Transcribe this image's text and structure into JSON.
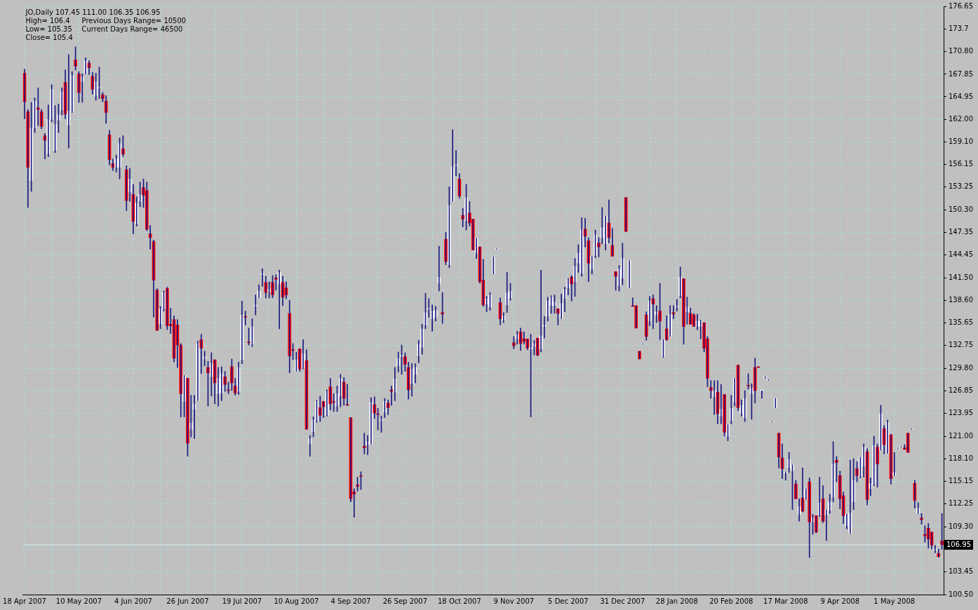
{
  "chart_data": {
    "type": "candlestick",
    "title": "JO,Daily 107.45 111.00 106.35 106.95",
    "annotations": [
      "High= 106.4",
      "Previous Days Range= 10500",
      "Low= 105.35",
      "Current Days Range= 46500",
      "Close= 105.4"
    ],
    "categories": [
      "18 Apr 2007",
      null,
      null,
      null,
      null,
      null,
      null,
      null,
      null,
      null,
      null,
      null,
      null,
      null,
      null,
      null,
      "10 May 2007",
      null,
      null,
      null,
      null,
      null,
      null,
      null,
      null,
      null,
      null,
      null,
      null,
      null,
      null,
      null,
      "4 Jun 2007",
      null,
      null,
      null,
      null,
      null,
      null,
      null,
      null,
      null,
      null,
      null,
      null,
      null,
      null,
      null,
      "26 Jun 2007",
      null,
      null,
      null,
      null,
      null,
      null,
      null,
      null,
      null,
      null,
      null,
      null,
      null,
      null,
      null,
      "19 Jul 2007",
      null,
      null,
      null,
      null,
      null,
      null,
      null,
      null,
      null,
      null,
      null,
      null,
      null,
      null,
      null,
      "10 Aug 2007",
      null,
      null,
      null,
      null,
      null,
      null,
      null,
      null,
      null,
      null,
      null,
      null,
      null,
      null,
      null,
      "4 Sep 2007",
      null,
      null,
      null,
      null,
      null,
      null,
      null,
      null,
      null,
      null,
      null,
      null,
      null,
      null,
      null,
      "26 Sep 2007",
      null,
      null,
      null,
      null,
      null,
      null,
      null,
      null,
      null,
      null,
      null,
      null,
      null,
      null,
      null,
      "18 Oct 2007",
      null,
      null,
      null,
      null,
      null,
      null,
      null,
      null,
      null,
      null,
      null,
      null,
      null,
      null,
      null,
      "9 Nov 2007",
      null,
      null,
      null,
      null,
      null,
      null,
      null,
      null,
      null,
      null,
      null,
      null,
      null,
      null,
      null,
      "5 Dec 2007",
      null,
      null,
      null,
      null,
      null,
      null,
      null,
      null,
      null,
      null,
      null,
      null,
      null,
      null,
      null,
      "31 Dec 2007",
      null,
      null,
      null,
      null,
      null,
      null,
      null,
      null,
      null,
      null,
      null,
      null,
      null,
      null,
      null,
      "28 Jan 2008",
      null,
      null,
      null,
      null,
      null,
      null,
      null,
      null,
      null,
      null,
      null,
      null,
      null,
      null,
      null,
      "20 Feb 2008",
      null,
      null,
      null,
      null,
      null,
      null,
      null,
      null,
      null,
      null,
      null,
      null,
      null,
      null,
      null,
      "17 Mar 2008",
      null,
      null,
      null,
      null,
      null,
      null,
      null,
      null,
      null,
      null,
      null,
      null,
      null,
      null,
      null,
      "9 Apr 2008",
      null,
      null,
      null,
      null,
      null,
      null,
      null,
      null,
      null,
      null,
      null,
      null,
      null,
      null,
      null,
      "1 May 2008",
      null,
      null,
      null,
      null,
      null,
      null,
      null,
      null,
      null,
      null,
      null,
      null,
      null,
      null
    ],
    "color": "#1a1a80",
    "ohlc": [
      [
        168.0,
        168.5,
        162.1,
        164.3
      ],
      [
        163.0,
        163.3,
        150.6,
        155.8
      ],
      [
        154.1,
        164.2,
        152.7,
        160.9
      ],
      [
        160.9,
        164.8,
        160.3,
        164.4
      ],
      [
        163.5,
        166.1,
        161.2,
        163.3
      ],
      [
        163.0,
        163.3,
        160.8,
        161.1
      ],
      [
        159.9,
        160.2,
        156.9,
        159.3
      ],
      [
        157.6,
        163.9,
        157.2,
        162.0
      ],
      [
        162.0,
        166.5,
        161.7,
        165.9
      ],
      [
        158.0,
        163.8,
        157.7,
        161.4
      ],
      [
        161.9,
        164.0,
        160.3,
        162.6
      ],
      [
        163.2,
        166.1,
        162.6,
        165.6
      ],
      [
        166.8,
        168.4,
        162.1,
        162.7
      ],
      [
        161.3,
        170.4,
        158.3,
        163.1
      ],
      [
        163.0,
        168.2,
        162.9,
        167.7
      ],
      [
        169.7,
        171.4,
        168.4,
        168.9
      ],
      [
        167.9,
        168.2,
        164.2,
        165.5
      ],
      [
        166.9,
        167.9,
        164.2,
        167.5
      ],
      [
        168.0,
        170.0,
        167.9,
        169.6
      ],
      [
        169.3,
        169.6,
        167.8,
        168.7
      ],
      [
        167.6,
        168.1,
        165.3,
        165.9
      ],
      [
        165.1,
        168.0,
        164.5,
        166.9
      ],
      [
        166.1,
        168.8,
        164.7,
        166.2
      ],
      [
        165.2,
        165.5,
        164.3,
        164.7
      ],
      [
        164.4,
        165.1,
        161.5,
        162.9
      ],
      [
        160.0,
        160.6,
        156.1,
        156.8
      ],
      [
        156.3,
        156.9,
        155.4,
        155.8
      ],
      [
        155.8,
        157.4,
        155.2,
        156.9
      ],
      [
        155.8,
        159.6,
        154.3,
        158.9
      ],
      [
        158.2,
        159.9,
        157.2,
        157.5
      ],
      [
        155.5,
        156.0,
        150.2,
        151.5
      ],
      [
        152.6,
        155.7,
        151.4,
        154.3
      ],
      [
        152.3,
        153.6,
        147.2,
        148.8
      ],
      [
        148.5,
        152.0,
        148.2,
        151.2
      ],
      [
        151.4,
        153.9,
        150.7,
        152.3
      ],
      [
        153.2,
        154.3,
        150.6,
        152.2
      ],
      [
        152.8,
        153.9,
        147.6,
        147.8
      ],
      [
        147.2,
        148.3,
        145.2,
        146.7
      ],
      [
        146.2,
        146.4,
        136.4,
        141.2
      ],
      [
        139.9,
        140.1,
        134.7,
        134.7
      ],
      [
        135.5,
        137.8,
        134.9,
        137.5
      ],
      [
        137.5,
        139.8,
        137.2,
        139.6
      ],
      [
        140.1,
        140.3,
        134.8,
        135.3
      ],
      [
        135.5,
        137.6,
        134.3,
        135.3
      ],
      [
        136.1,
        136.6,
        130.6,
        131.1
      ],
      [
        135.4,
        136.1,
        129.9,
        132.8
      ],
      [
        132.8,
        133.0,
        123.5,
        126.5
      ],
      [
        125.5,
        128.9,
        123.5,
        128.9
      ],
      [
        128.5,
        128.5,
        118.4,
        120.1
      ],
      [
        121.9,
        126.3,
        120.9,
        122.7
      ],
      [
        124.5,
        126.3,
        120.7,
        125.2
      ],
      [
        125.6,
        133.3,
        125.6,
        133.0
      ],
      [
        133.5,
        134.2,
        129.1,
        132.4
      ],
      [
        131.0,
        132.0,
        130.1,
        131.3
      ],
      [
        129.9,
        130.7,
        124.9,
        129.2
      ],
      [
        128.7,
        131.8,
        126.2,
        130.4
      ],
      [
        130.9,
        130.9,
        125.2,
        127.9
      ],
      [
        126.5,
        129.9,
        124.9,
        128.5
      ],
      [
        126.6,
        130.0,
        125.6,
        129.1
      ],
      [
        128.7,
        129.4,
        126.8,
        127.7
      ],
      [
        127.0,
        128.0,
        126.5,
        126.9
      ],
      [
        130.0,
        131.0,
        126.9,
        127.9
      ],
      [
        127.5,
        128.5,
        126.3,
        126.6
      ],
      [
        126.8,
        130.6,
        126.4,
        129.9
      ],
      [
        130.9,
        138.5,
        130.4,
        136.7
      ],
      [
        136.5,
        137.2,
        135.4,
        136.4
      ],
      [
        133.2,
        135.0,
        132.8,
        133.1
      ],
      [
        132.9,
        136.2,
        132.6,
        135.2
      ],
      [
        137.8,
        139.3,
        136.7,
        138.0
      ],
      [
        138.9,
        140.6,
        138.9,
        139.8
      ],
      [
        141.9,
        142.7,
        140.4,
        142.1
      ],
      [
        140.9,
        141.7,
        138.9,
        139.6
      ],
      [
        139.7,
        141.0,
        138.9,
        140.0
      ],
      [
        140.9,
        141.8,
        138.9,
        139.3
      ],
      [
        141.5,
        141.9,
        139.9,
        141.3
      ],
      [
        140.7,
        142.5,
        134.9,
        142.2
      ],
      [
        140.9,
        141.7,
        137.9,
        139.0
      ],
      [
        140.2,
        141.0,
        138.8,
        139.3
      ],
      [
        136.9,
        138.6,
        129.2,
        131.4
      ],
      [
        132.2,
        133.0,
        130.9,
        132.1
      ],
      [
        129.4,
        131.9,
        129.4,
        130.9
      ],
      [
        132.3,
        132.3,
        129.4,
        129.7
      ],
      [
        129.8,
        133.5,
        129.7,
        131.7
      ],
      [
        130.8,
        132.2,
        121.9,
        121.9
      ],
      [
        120.0,
        121.1,
        118.4,
        120.7
      ],
      [
        121.6,
        123.5,
        120.9,
        123.1
      ],
      [
        123.0,
        125.6,
        122.8,
        125.5
      ],
      [
        124.7,
        126.2,
        122.9,
        123.7
      ],
      [
        125.5,
        125.5,
        123.4,
        124.8
      ],
      [
        123.7,
        127.0,
        123.6,
        126.8
      ],
      [
        127.4,
        128.5,
        124.4,
        125.2
      ],
      [
        125.5,
        126.5,
        124.2,
        125.4
      ],
      [
        124.9,
        127.5,
        124.2,
        126.5
      ],
      [
        126.2,
        129.0,
        124.8,
        128.5
      ],
      [
        128.0,
        128.6,
        125.0,
        125.9
      ],
      [
        125.1,
        127.7,
        125.0,
        125.0
      ],
      [
        123.4,
        123.4,
        112.5,
        112.9
      ],
      [
        113.8,
        114.2,
        110.5,
        113.5
      ],
      [
        114.7,
        115.7,
        113.9,
        114.5
      ],
      [
        115.9,
        116.4,
        114.1,
        115.8
      ],
      [
        119.7,
        121.4,
        118.7,
        119.5
      ],
      [
        119.9,
        121.1,
        118.6,
        120.3
      ],
      [
        120.0,
        126.0,
        120.0,
        125.4
      ],
      [
        125.1,
        126.1,
        123.3,
        124.0
      ],
      [
        123.9,
        124.6,
        121.8,
        123.8
      ],
      [
        123.0,
        123.6,
        121.5,
        123.2
      ],
      [
        124.1,
        125.9,
        123.4,
        125.5
      ],
      [
        125.3,
        125.7,
        123.8,
        124.7
      ],
      [
        127.0,
        127.5,
        125.0,
        126.8
      ],
      [
        126.7,
        129.9,
        125.6,
        128.4
      ],
      [
        130.1,
        131.9,
        129.3,
        131.1
      ],
      [
        131.3,
        132.8,
        129.0,
        131.5
      ],
      [
        131.3,
        131.8,
        129.4,
        130.3
      ],
      [
        129.9,
        130.6,
        125.8,
        127.0
      ],
      [
        127.8,
        130.4,
        126.2,
        129.7
      ],
      [
        129.0,
        130.4,
        127.9,
        129.9
      ],
      [
        131.4,
        133.4,
        130.5,
        132.9
      ],
      [
        132.5,
        135.5,
        131.6,
        134.9
      ],
      [
        135.4,
        139.5,
        134.9,
        137.0
      ],
      [
        137.4,
        138.8,
        136.4,
        137.6
      ],
      [
        136.2,
        138.0,
        134.6,
        137.2
      ],
      [
        136.4,
        137.8,
        135.9,
        137.3
      ],
      [
        140.8,
        145.6,
        139.8,
        141.6
      ],
      [
        137.0,
        139.6,
        135.6,
        136.8
      ],
      [
        146.5,
        147.4,
        143.2,
        143.6
      ],
      [
        143.2,
        153.3,
        142.8,
        150.9
      ],
      [
        151.4,
        160.7,
        151.4,
        155.9
      ],
      [
        156.0,
        158.0,
        154.7,
        156.2
      ],
      [
        154.3,
        155.0,
        151.8,
        152.1
      ],
      [
        149.6,
        150.5,
        148.1,
        149.1
      ],
      [
        148.9,
        153.6,
        147.7,
        151.9
      ],
      [
        149.9,
        151.4,
        148.2,
        148.6
      ],
      [
        149.1,
        149.1,
        145.1,
        145.1
      ],
      [
        144.7,
        146.6,
        144.0,
        146.6
      ],
      [
        145.5,
        145.5,
        140.8,
        141.0
      ],
      [
        141.2,
        143.9,
        137.8,
        138.0
      ],
      [
        138.1,
        139.1,
        137.1,
        138.8
      ],
      [
        137.7,
        139.6,
        137.3,
        139.3
      ],
      [
        142.0,
        144.2,
        142.0,
        144.2
      ],
      [
        145.2,
        145.2,
        145.2,
        145.2
      ],
      [
        138.3,
        138.9,
        135.4,
        136.2
      ],
      [
        136.0,
        137.0,
        135.7,
        136.6
      ],
      [
        138.0,
        142.2,
        137.0,
        139.6
      ],
      [
        138.9,
        140.8,
        138.6,
        139.8
      ],
      [
        133.1,
        133.9,
        132.3,
        132.7
      ],
      [
        133.6,
        134.6,
        132.9,
        134.2
      ],
      [
        134.5,
        135.0,
        132.1,
        133.0
      ],
      [
        133.6,
        134.5,
        132.9,
        133.3
      ],
      [
        133.6,
        133.6,
        132.2,
        132.4
      ],
      [
        132.3,
        134.2,
        123.5,
        132.5
      ],
      [
        132.6,
        133.4,
        131.5,
        133.0
      ],
      [
        133.7,
        133.7,
        131.4,
        131.5
      ],
      [
        132.3,
        142.5,
        131.9,
        134.0
      ],
      [
        135.2,
        136.5,
        133.7,
        135.4
      ],
      [
        136.5,
        139.0,
        135.9,
        138.5
      ],
      [
        137.9,
        139.2,
        136.9,
        139.0
      ],
      [
        137.9,
        139.3,
        136.9,
        138.4
      ],
      [
        137.5,
        137.5,
        135.4,
        136.9
      ],
      [
        136.2,
        139.4,
        136.2,
        138.2
      ],
      [
        138.8,
        140.3,
        137.1,
        140.0
      ],
      [
        140.2,
        141.4,
        139.3,
        141.3
      ],
      [
        141.6,
        141.8,
        138.5,
        140.7
      ],
      [
        141.0,
        144.0,
        139.1,
        143.0
      ],
      [
        143.4,
        145.8,
        142.2,
        144.7
      ],
      [
        142.1,
        149.3,
        141.7,
        147.8
      ],
      [
        147.8,
        149.2,
        145.5,
        146.9
      ],
      [
        146.3,
        146.7,
        141.0,
        143.4
      ],
      [
        142.6,
        144.3,
        142.0,
        144.3
      ],
      [
        144.4,
        147.7,
        144.1,
        147.1
      ],
      [
        146.0,
        146.7,
        144.2,
        145.5
      ],
      [
        146.7,
        150.6,
        145.9,
        148.0
      ],
      [
        145.9,
        149.5,
        145.1,
        149.5
      ],
      [
        148.6,
        151.6,
        146.0,
        146.7
      ],
      [
        145.7,
        147.9,
        144.3,
        144.3
      ],
      [
        142.3,
        142.3,
        139.9,
        141.7
      ],
      [
        140.5,
        143.1,
        139.8,
        142.7
      ],
      [
        141.5,
        146.0,
        140.6,
        144.0
      ],
      [
        151.9,
        151.9,
        147.5,
        147.5
      ],
      [
        140.2,
        143.7,
        140.2,
        143.7
      ],
      [
        137.9,
        138.9,
        137.8,
        137.8
      ],
      [
        137.9,
        137.9,
        135.0,
        135.0
      ],
      [
        132.0,
        132.0,
        131.0,
        131.0
      ],
      [
        132.9,
        132.9,
        132.9,
        132.9
      ],
      [
        136.7,
        137.1,
        133.4,
        133.9
      ],
      [
        135.9,
        139.1,
        135.3,
        138.5
      ],
      [
        138.8,
        139.3,
        134.9,
        138.1
      ],
      [
        136.7,
        137.9,
        135.7,
        137.1
      ],
      [
        137.2,
        140.8,
        133.5,
        135.9
      ],
      [
        131.3,
        133.5,
        131.2,
        133.5
      ],
      [
        134.9,
        136.6,
        133.4,
        133.5
      ],
      [
        133.9,
        137.9,
        133.9,
        136.8
      ],
      [
        137.0,
        137.9,
        136.2,
        136.8
      ],
      [
        137.7,
        138.7,
        137.2,
        137.9
      ],
      [
        139.2,
        142.9,
        138.9,
        141.6
      ],
      [
        141.4,
        141.4,
        132.9,
        135.2
      ],
      [
        137.1,
        139.0,
        135.5,
        137.7
      ],
      [
        136.9,
        137.6,
        135.5,
        135.5
      ],
      [
        136.7,
        136.9,
        135.2,
        135.2
      ],
      [
        135.2,
        136.8,
        134.8,
        135.9
      ],
      [
        135.2,
        136.0,
        133.6,
        135.9
      ],
      [
        135.7,
        135.7,
        131.9,
        132.4
      ],
      [
        133.6,
        133.9,
        127.4,
        128.5
      ],
      [
        127.3,
        128.2,
        125.9,
        126.9
      ],
      [
        126.1,
        128.2,
        123.8,
        126.9
      ],
      [
        126.7,
        128.2,
        122.6,
        123.9
      ],
      [
        123.6,
        127.7,
        122.6,
        124.5
      ],
      [
        126.4,
        126.4,
        121.0,
        121.5
      ],
      [
        121.0,
        122.5,
        120.4,
        122.5
      ],
      [
        123.0,
        126.3,
        122.6,
        124.6
      ],
      [
        125.4,
        128.5,
        124.9,
        128.5
      ],
      [
        130.2,
        130.2,
        124.3,
        124.7
      ],
      [
        123.9,
        125.7,
        123.6,
        125.0
      ],
      [
        123.4,
        126.9,
        122.9,
        125.9
      ],
      [
        127.6,
        129.1,
        127.1,
        127.5
      ],
      [
        126.5,
        127.8,
        123.2,
        127.2
      ],
      [
        129.9,
        131.1,
        125.3,
        126.9
      ],
      [
        130.0,
        130.0,
        129.9,
        129.9
      ],
      [
        126.9,
        126.9,
        125.9,
        126.9
      ],
      [
        128.5,
        128.7,
        128.5,
        128.7
      ],
      [
        128.2,
        128.2,
        128.2,
        128.2
      ],
      [
        122.8,
        122.8,
        122.8,
        122.8
      ],
      [
        124.7,
        125.9,
        124.7,
        125.9
      ],
      [
        121.4,
        121.4,
        116.9,
        118.3
      ],
      [
        118.2,
        120.0,
        115.5,
        116.8
      ],
      [
        116.2,
        116.4,
        115.3,
        116.4
      ],
      [
        116.9,
        118.9,
        116.3,
        118.0
      ],
      [
        116.5,
        117.3,
        111.5,
        117.3
      ],
      [
        114.8,
        115.3,
        112.9,
        112.9
      ],
      [
        110.9,
        112.9,
        110.0,
        111.9
      ],
      [
        113.0,
        116.9,
        111.2,
        111.3
      ],
      [
        112.8,
        114.2,
        112.8,
        114.2
      ],
      [
        115.1,
        115.6,
        105.3,
        109.9
      ],
      [
        109.9,
        110.9,
        108.3,
        110.4
      ],
      [
        110.7,
        110.7,
        108.5,
        108.6
      ],
      [
        110.8,
        115.7,
        110.6,
        112.4
      ],
      [
        112.9,
        114.6,
        109.8,
        110.0
      ],
      [
        110.8,
        111.5,
        107.5,
        111.5
      ],
      [
        111.4,
        113.5,
        111.0,
        112.5
      ],
      [
        113.1,
        120.3,
        112.5,
        117.4
      ],
      [
        117.9,
        118.4,
        115.1,
        117.6
      ],
      [
        115.9,
        116.5,
        111.6,
        112.9
      ],
      [
        113.3,
        113.8,
        109.7,
        110.7
      ],
      [
        109.4,
        110.9,
        109.0,
        110.9
      ],
      [
        108.4,
        117.9,
        108.4,
        111.1
      ],
      [
        112.5,
        118.1,
        111.5,
        115.3
      ],
      [
        116.8,
        117.7,
        115.1,
        115.9
      ],
      [
        115.8,
        118.3,
        115.6,
        118.3
      ],
      [
        117.1,
        120.0,
        115.7,
        119.6
      ],
      [
        119.0,
        119.4,
        112.1,
        112.8
      ],
      [
        114.2,
        115.6,
        113.3,
        114.9
      ],
      [
        114.8,
        121.0,
        114.6,
        119.8
      ],
      [
        119.6,
        120.0,
        114.4,
        117.4
      ],
      [
        119.2,
        125.0,
        119.2,
        123.9
      ],
      [
        122.0,
        122.4,
        118.7,
        119.9
      ],
      [
        118.8,
        123.1,
        118.8,
        122.8
      ],
      [
        121.2,
        121.2,
        114.8,
        115.5
      ],
      [
        115.9,
        118.9,
        115.9,
        116.3
      ],
      [
        119.4,
        119.4,
        119.4,
        119.4
      ],
      [
        119.6,
        119.6,
        119.6,
        119.6
      ],
      [
        119.5,
        119.9,
        119.3,
        119.3
      ],
      [
        121.4,
        121.4,
        118.9,
        118.9
      ],
      [
        121.9,
        121.9,
        121.9,
        121.9
      ],
      [
        114.9,
        115.3,
        111.7,
        112.7
      ],
      [
        111.0,
        112.4,
        111.0,
        111.7
      ],
      [
        110.4,
        111.0,
        109.6,
        110.2
      ],
      [
        108.3,
        109.4,
        107.3,
        108.1
      ],
      [
        109.1,
        109.7,
        106.5,
        107.7
      ],
      [
        108.6,
        108.6,
        106.4,
        106.9
      ],
      [
        106.2,
        106.9,
        105.9,
        106.4
      ],
      [
        105.8,
        106.4,
        105.35,
        105.4
      ],
      [
        107.45,
        111.0,
        106.35,
        106.95
      ]
    ],
    "colors": [
      "#ff0000",
      "#ff0000",
      "#ffffff",
      "#ffffff",
      "#ff0000",
      "#ff0000",
      "#ff0000",
      "#ffffff",
      "#ffffff",
      "#ffffff",
      "#ffffff",
      "#ffffff",
      "#ff0000",
      "#ffffff",
      "#ffffff",
      "#ff0000",
      "#ff0000",
      "#ffffff",
      "#ffffff",
      "#ff0000",
      "#ff0000",
      "#ffffff",
      "#ffffff",
      "#ff0000",
      "#ff0000",
      "#ff0000",
      "#ff0000",
      "#ffffff",
      "#ffffff",
      "#ff0000",
      "#ff0000",
      "#ffffff",
      "#ff0000",
      "#ffffff",
      "#ffffff",
      "#ff0000",
      "#ff0000",
      "#ff0000",
      "#ff0000",
      "#ff0000",
      "#ffffff",
      "#ffffff",
      "#ff0000",
      "#ff0000",
      "#ff0000",
      "#ff0000",
      "#ff0000",
      "#ffffff",
      "#ff0000",
      "#ffffff",
      "#ffffff",
      "#ffffff",
      "#ff0000",
      "#ffffff",
      "#ff0000",
      "#ffffff",
      "#ff0000",
      "#ffffff",
      "#ffffff",
      "#ff0000",
      "#ff0000",
      "#ff0000",
      "#ff0000",
      "#ffffff",
      "#ffffff",
      "#ff0000",
      "#ff0000",
      "#ffffff",
      "#ffffff",
      "#ffffff",
      "#ffffff",
      "#ff0000",
      "#ffffff",
      "#ff0000",
      "#ff0000",
      "#ffffff",
      "#ff0000",
      "#ff0000",
      "#ff0000",
      "#ff0000",
      "#ffffff",
      "#ff0000",
      "#ffffff",
      "#ff0000",
      "#ffffff",
      "#ffffff",
      "#ffffff",
      "#ff0000",
      "#ff0000",
      "#ffffff",
      "#ff0000",
      "#ff0000",
      "#ffffff",
      "#ffffff",
      "#ff0000",
      "#ff0000",
      "#ff0000",
      "#ff0000",
      "#ff0000",
      "#ff0000",
      "#ff0000",
      "#ffffff",
      "#ffffff",
      "#ff0000",
      "#ff0000",
      "#ffffff",
      "#ffffff",
      "#ff0000",
      "#ff0000",
      "#ffffff",
      "#ffffff",
      "#ffffff",
      "#ff0000",
      "#ff0000",
      "#ffffff",
      "#ffffff",
      "#ffffff",
      "#ffffff",
      "#ffffff",
      "#ffffff",
      "#ffffff",
      "#ffffff",
      "#ffffff",
      "#ff0000",
      "#ff0000",
      "#ffffff",
      "#ffffff",
      "#ffffff",
      "#ff0000",
      "#ff0000",
      "#ffffff",
      "#ff0000",
      "#ff0000",
      "#ffffff",
      "#ff0000",
      "#ff0000",
      "#ffffff",
      "#ffffff",
      "#ffffff",
      "#ffffff",
      "#ff0000",
      "#ffffff",
      "#ffffff",
      "#ffffff",
      "#ff0000",
      "#ffffff",
      "#ff0000",
      "#ff0000",
      "#ff0000",
      "#ffffff",
      "#ffffff",
      "#ff0000",
      "#ffffff",
      "#ffffff",
      "#ffffff",
      "#ffffff",
      "#ffffff",
      "#ff0000",
      "#ffffff",
      "#ffffff",
      "#ffffff",
      "#ff0000",
      "#ffffff",
      "#ffffff",
      "#ffffff",
      "#ff0000",
      "#ff0000",
      "#ffffff",
      "#ffffff",
      "#ff0000",
      "#ffffff",
      "#ffffff",
      "#ff0000",
      "#ff0000",
      "#ff0000",
      "#ffffff",
      "#ffffff",
      "#ff0000",
      "#ffffff",
      "#ff0000",
      "#ff0000",
      "#ff0000",
      "#ffffff",
      "#ff0000",
      "#ffffff",
      "#ff0000",
      "#ffffff",
      "#ff0000",
      "#ffffff",
      "#ff0000",
      "#ffffff",
      "#ff0000",
      "#ffffff",
      "#ffffff",
      "#ff0000",
      "#ffffff",
      "#ff0000",
      "#ff0000",
      "#ffffff",
      "#ffffff",
      "#ff0000",
      "#ff0000",
      "#ff0000",
      "#ffffff",
      "#ff0000",
      "#ffffff",
      "#ff0000",
      "#ffffff",
      "#ffffff",
      "#ffffff",
      "#ff0000",
      "#ffffff",
      "#ffffff",
      "#ff0000",
      "#ffffff",
      "#ff0000",
      "#ff0000",
      "#ffffff",
      "#ffffff",
      "#ffffff",
      "#ffffff",
      "#ffffff",
      "#ff0000",
      "#ff0000",
      "#ffffff",
      "#ffffff",
      "#ffffff",
      "#ff0000",
      "#ffffff",
      "#ff0000",
      "#ffffff",
      "#ff0000",
      "#ffffff",
      "#ff0000",
      "#ffffff",
      "#ff0000",
      "#ffffff",
      "#ffffff",
      "#ffffff",
      "#ff0000",
      "#ff0000",
      "#ff0000",
      "#ffffff",
      "#ffffff",
      "#ffffff",
      "#ff0000",
      "#ffffff",
      "#ffffff",
      "#ff0000",
      "#ffffff",
      "#ffffff",
      "#ff0000",
      "#ffffff",
      "#ff0000",
      "#ffffff",
      "#ff0000",
      "#ffffff",
      "#ffffff",
      "#ffffff",
      "#ff0000",
      "#ff0000",
      "#ffffff",
      "#ff0000",
      "#ffffff",
      "#ff0000",
      "#ff0000",
      "#ff0000",
      "#ff0000",
      "#ffffff",
      "#ff0000",
      "#ff0000"
    ],
    "ylim": [
      100.5,
      176.65
    ],
    "yticks": [
      {
        "value": 100.5,
        "label": "100.50"
      },
      103.45,
      {
        "value": 106.35,
        "label": null
      },
      {
        "value": 109.3,
        "label": "109.30"
      },
      112.25,
      115.15,
      {
        "value": 118.1,
        "label": "118.10"
      },
      {
        "value": 121,
        "label": "121.00"
      },
      123.95,
      126.85,
      {
        "value": 129.8,
        "label": "129.80"
      },
      132.75,
      135.65,
      {
        "value": 138.6,
        "label": "138.60"
      },
      {
        "value": 141.5,
        "label": "141.50"
      },
      144.45,
      147.35,
      {
        "value": 150.3,
        "label": "150.30"
      },
      153.25,
      156.15,
      {
        "value": 159.1,
        "label": "159.10"
      },
      {
        "value": 162,
        "label": "162.00"
      },
      164.95,
      167.85,
      {
        "value": 170.8,
        "label": "170.80"
      },
      173.7,
      176.65
    ],
    "ref_lines": [
      {
        "axis": "y",
        "value": 106.95,
        "label": "106.95",
        "color": "#d0f0f0"
      }
    ],
    "grid": true
  }
}
